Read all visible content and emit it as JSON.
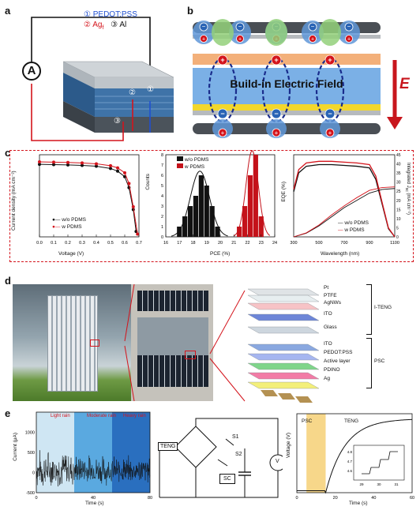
{
  "panel_labels": {
    "a": "a",
    "b": "b",
    "c": "c",
    "d": "d",
    "e": "e"
  },
  "panel_a": {
    "ammeter": "A",
    "legend": {
      "l1": "① PEDOT:PSS",
      "l2": "② Ag",
      "l2_sub": "f",
      "l3": "③ Al"
    },
    "markers": [
      "①",
      "②",
      "③"
    ],
    "colors": {
      "pedot": "#1f4fd1",
      "ag": "#d4141c",
      "al": "#111111"
    }
  },
  "panel_b": {
    "field_label": "Build-in Electric Field",
    "e_label": "E",
    "colors": {
      "arrow": "#c8161d",
      "blue_band": "#7bb0e6",
      "orange_band": "#f3b07a",
      "yellow_band": "#f2d72c"
    }
  },
  "panel_c": {
    "jv": {
      "ylabel": "Current density (mA cm⁻²)",
      "xlabel": "Voltage (V)",
      "legend": [
        "w/o PDMS",
        "w PDMS"
      ],
      "xticks": [
        "0.0",
        "0.1",
        "0.2",
        "0.3",
        "0.4",
        "0.5",
        "0.6",
        "0.7"
      ]
    },
    "pce": {
      "ylabel": "Counts",
      "xlabel": "PCE (%)",
      "legend": [
        "w/o PDMS",
        "w PDMS"
      ],
      "xticks": [
        "16",
        "17",
        "18",
        "19",
        "20",
        "21",
        "22",
        "23",
        "24"
      ],
      "yticks": [
        "0",
        "1",
        "2",
        "3",
        "4",
        "5",
        "6",
        "7",
        "8"
      ]
    },
    "eqe": {
      "ylabel": "EQE (%)",
      "ylabel_right": "Integrated J",
      "ylabel_right_sub": "sc",
      "ylabel_right_unit": "(mA cm⁻²)",
      "xlabel": "Wavelength (nm)",
      "legend": [
        "w/o PDMS",
        "w PDMS"
      ],
      "xticks": [
        "300",
        "500",
        "700",
        "900",
        "1100"
      ],
      "yticks_right": [
        "0",
        "5",
        "10",
        "15",
        "20",
        "25",
        "30",
        "35",
        "40",
        "45"
      ]
    }
  },
  "chart_data": [
    {
      "type": "line",
      "title": "",
      "xlabel": "Voltage (V)",
      "ylabel": "Current density (mA cm⁻²)",
      "xlim": [
        0,
        0.7
      ],
      "series": [
        {
          "name": "w/o PDMS",
          "x": [
            0,
            0.1,
            0.2,
            0.3,
            0.4,
            0.5,
            0.55,
            0.6,
            0.63,
            0.66,
            0.68
          ],
          "y": [
            26.5,
            26.4,
            26.3,
            26.1,
            25.8,
            25.0,
            24.0,
            22.0,
            18.0,
            10.0,
            2.0
          ]
        },
        {
          "name": "w PDMS",
          "x": [
            0,
            0.1,
            0.2,
            0.3,
            0.4,
            0.5,
            0.55,
            0.6,
            0.63,
            0.66,
            0.69
          ],
          "y": [
            27.4,
            27.3,
            27.2,
            27.0,
            26.7,
            26.0,
            25.2,
            23.4,
            19.5,
            11.0,
            1.0
          ]
        }
      ]
    },
    {
      "type": "bar",
      "title": "",
      "xlabel": "PCE (%)",
      "ylabel": "Counts",
      "ylim": [
        0,
        8
      ],
      "series": [
        {
          "name": "w/o PDMS",
          "x": [
            17.0,
            17.4,
            17.8,
            18.2,
            18.6,
            19.0,
            19.4,
            19.8
          ],
          "values": [
            1,
            2,
            3,
            4,
            6,
            5,
            3,
            1
          ]
        },
        {
          "name": "w PDMS",
          "x": [
            21.4,
            21.8,
            22.2,
            22.6,
            23.0
          ],
          "values": [
            1,
            3,
            6,
            8,
            2
          ]
        }
      ]
    },
    {
      "type": "line",
      "title": "",
      "xlabel": "Wavelength (nm)",
      "ylabel": "EQE (%)",
      "xlim": [
        300,
        1100
      ],
      "series": [
        {
          "name": "w/o PDMS EQE",
          "x": [
            300,
            340,
            400,
            500,
            600,
            700,
            800,
            900,
            950,
            1000,
            1050,
            1100
          ],
          "y": [
            55,
            78,
            86,
            88,
            88,
            87,
            86,
            84,
            70,
            40,
            10,
            0
          ]
        },
        {
          "name": "w PDMS EQE",
          "x": [
            300,
            340,
            400,
            500,
            600,
            700,
            800,
            900,
            950,
            1000,
            1050,
            1100
          ],
          "y": [
            58,
            82,
            90,
            92,
            92,
            91,
            90,
            88,
            74,
            42,
            11,
            0
          ]
        },
        {
          "name": "w/o PDMS Jsc",
          "x": [
            300,
            400,
            500,
            600,
            700,
            800,
            900,
            1000,
            1100
          ],
          "y": [
            0,
            2,
            6,
            11,
            16,
            20,
            24,
            26,
            26.5
          ]
        },
        {
          "name": "w PDMS Jsc",
          "x": [
            300,
            400,
            500,
            600,
            700,
            800,
            900,
            1000,
            1100
          ],
          "y": [
            0,
            2.2,
            6.5,
            12,
            17,
            21.5,
            25.5,
            27,
            27.4
          ]
        }
      ]
    },
    {
      "type": "line",
      "title": "",
      "xlabel": "Time (s)",
      "ylabel": "Current (μA)",
      "xlim": [
        0,
        80
      ],
      "ylim": [
        -500,
        1500
      ],
      "series": [
        {
          "name": "",
          "x": [
            0,
            80
          ],
          "y": [
            0,
            0
          ]
        }
      ]
    },
    {
      "type": "line",
      "title": "",
      "xlabel": "Time (s)",
      "ylabel": "Voltage (V)",
      "xlim": [
        0,
        60
      ],
      "series": [
        {
          "name": "",
          "x": [
            0,
            5,
            10,
            15,
            20,
            30,
            40,
            50,
            60
          ],
          "y": [
            0,
            0,
            0,
            0.3,
            0.5,
            0.62,
            0.68,
            0.71,
            0.73
          ]
        }
      ]
    }
  ],
  "panel_d": {
    "layers_top": [
      "Pt",
      "PTFE",
      "AgNWs",
      "ITO",
      "Glass"
    ],
    "layers_bottom": [
      "ITO",
      "PEDOT:PSS",
      "Active layer",
      "PDINO",
      "Ag"
    ],
    "group_top": "I-TENG",
    "group_bottom": "PSC"
  },
  "panel_e": {
    "current_ylabel": "Current (μA)",
    "current_xlabel": "Time (s)",
    "rain_labels": [
      "Light rain",
      "Moderate rain",
      "Heavy rain"
    ],
    "current_yticks": [
      "1000",
      "500",
      "0",
      "-500"
    ],
    "current_xticks": [
      "0",
      "40",
      "80"
    ],
    "circuit": {
      "teng": "TENG",
      "s1": "S1",
      "s2": "S2",
      "sc": "SC",
      "v": "V"
    },
    "voltage_ylabel": "Voltage (V)",
    "voltage_xlabel": "Time (s)",
    "voltage_xticks": [
      "0",
      "20",
      "40",
      "60"
    ],
    "psc_label": "PSC",
    "teng_label": "TENG",
    "inset_xticks": [
      "29",
      "30",
      "31"
    ],
    "inset_yticks": [
      "4.8",
      "4.7",
      "4.6"
    ]
  }
}
